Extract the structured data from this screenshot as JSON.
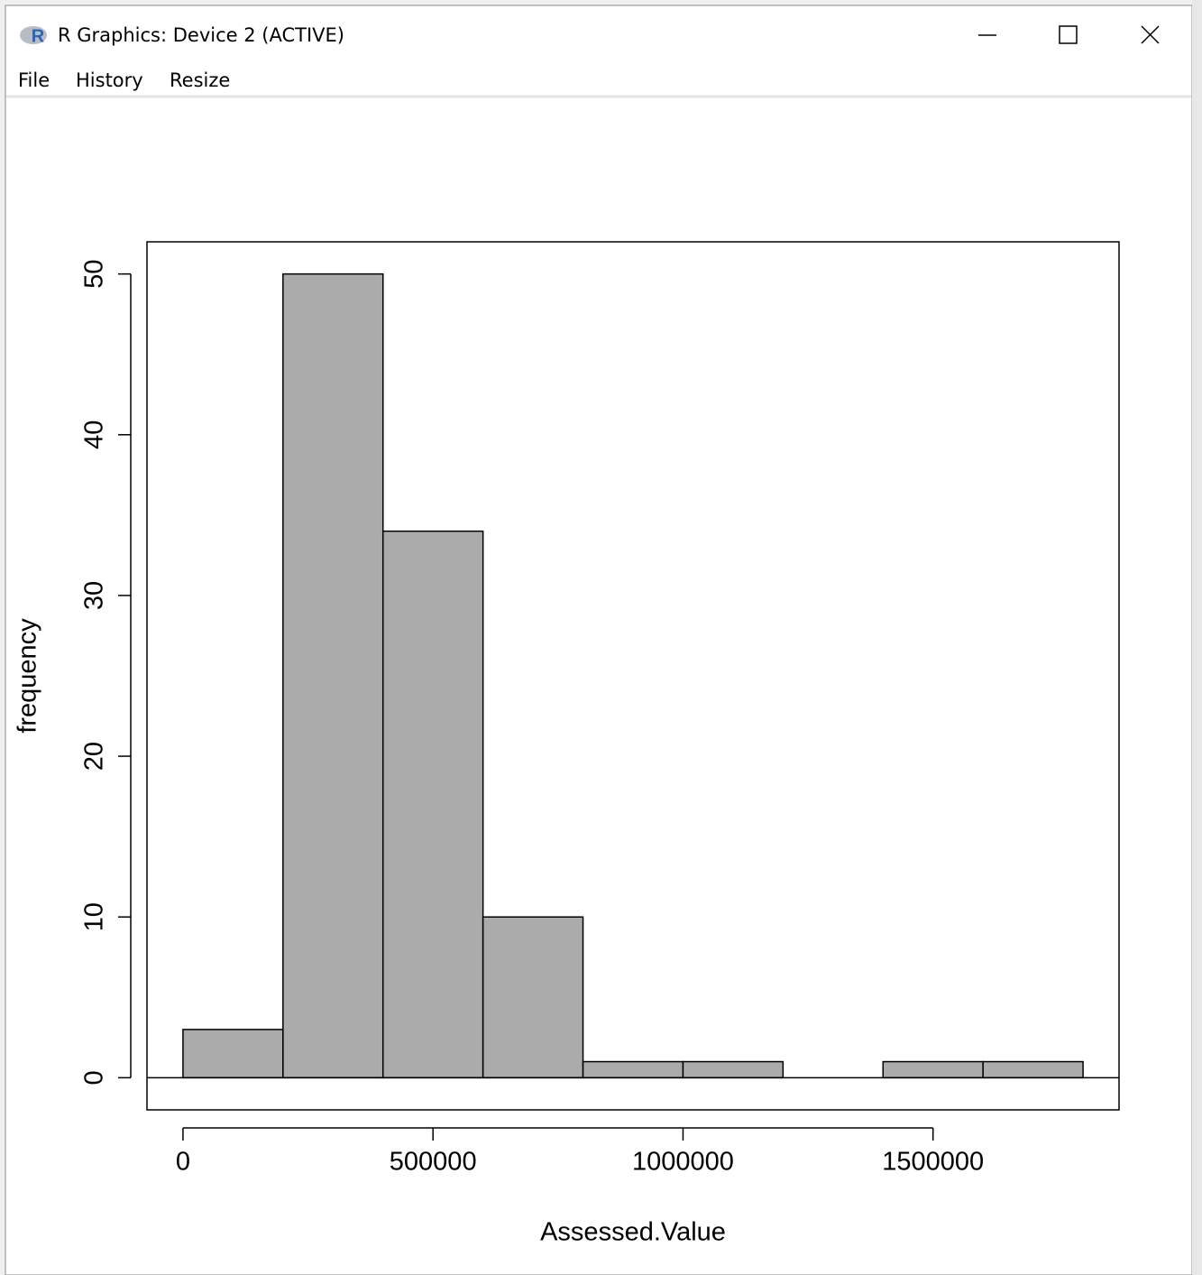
{
  "window": {
    "title": "R Graphics: Device 2 (ACTIVE)",
    "menu": [
      "File",
      "History",
      "Resize"
    ]
  },
  "chart_data": {
    "type": "histogram",
    "x_label": "Assessed.Value",
    "y_label": "frequency",
    "bins": [
      0,
      200000,
      400000,
      600000,
      800000,
      1000000,
      1200000,
      1400000,
      1600000,
      1800000
    ],
    "values": [
      3,
      50,
      34,
      10,
      1,
      1,
      0,
      1,
      1
    ],
    "color": "#ababab",
    "xlim": [
      -72000,
      1872000
    ],
    "xticks": [
      0,
      500000,
      1000000,
      1500000
    ],
    "ylim": [
      -2,
      52
    ],
    "yticks": [
      0,
      10,
      20,
      30,
      40,
      50
    ]
  }
}
